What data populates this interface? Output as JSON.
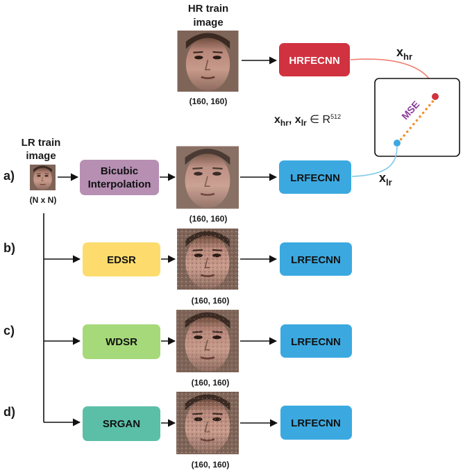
{
  "hr_image": {
    "title_line1": "HR train",
    "title_line2": "image",
    "size": "(160, 160)"
  },
  "lr_image": {
    "title_line1": "LR train",
    "title_line2": "image",
    "size": "(N x N)"
  },
  "hrfecnn": {
    "label": "HRFECNN",
    "color": "#d1323f"
  },
  "feature_space": {
    "formula_main": "x",
    "formula_sub1": "hr",
    "formula_sep": ", x",
    "formula_sub2": "lr",
    "formula_in": " ∈  R",
    "formula_sup": "512"
  },
  "embedding": {
    "xhr_main": "x",
    "xhr_sub": "hr",
    "xlr_main": "x",
    "xlr_sub": "lr",
    "mse": "MSE"
  },
  "rows": [
    {
      "tag": "a)",
      "method_line1": "Bicubic",
      "method_line2": "Interpolation",
      "method_color": "#b68fb3",
      "size": "(160, 160)",
      "net": "LRFECNN"
    },
    {
      "tag": "b)",
      "method": "EDSR",
      "method_color": "#fddc6d",
      "size": "(160, 160)",
      "net": "LRFECNN"
    },
    {
      "tag": "c)",
      "method": "WDSR",
      "method_color": "#a6d97a",
      "size": "(160, 160)",
      "net": "LRFECNN"
    },
    {
      "tag": "d)",
      "method": "SRGAN",
      "method_color": "#5bbfa8",
      "size": "(160, 160)",
      "net": "LRFECNN"
    }
  ],
  "colors": {
    "lrfecnn": "#3ba9e0",
    "hr_curve": "#f08070",
    "lr_curve": "#7ec8e8",
    "mse_dots": "#f09030",
    "mse_text": "#8a3a9a"
  }
}
